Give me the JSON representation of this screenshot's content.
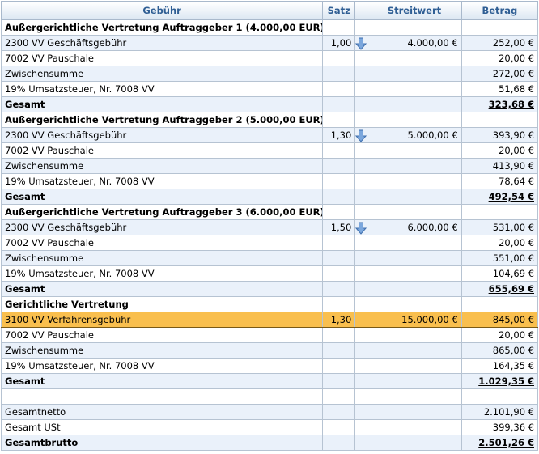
{
  "columns": {
    "fee": "Gebühr",
    "rate": "Satz",
    "value": "Streitwert",
    "amount": "Betrag"
  },
  "icons": {
    "rate_arrow": "arrow-down-icon"
  },
  "rows": [
    {
      "fee": "Außergerichtliche Vertretung Auftraggeber 1 (4.000,00 EUR)",
      "rate": "",
      "value": "",
      "amount": ""
    },
    {
      "fee": "2300 VV Geschäftsgebühr",
      "rate": "1,00",
      "value": "4.000,00 €",
      "amount": "252,00 €"
    },
    {
      "fee": "7002 VV Pauschale",
      "rate": "",
      "value": "",
      "amount": "20,00 €"
    },
    {
      "fee": "Zwischensumme",
      "rate": "",
      "value": "",
      "amount": "272,00 €"
    },
    {
      "fee": "19% Umsatzsteuer, Nr. 7008 VV",
      "rate": "",
      "value": "",
      "amount": "51,68 €"
    },
    {
      "fee": "Gesamt",
      "rate": "",
      "value": "",
      "amount": "323,68 €"
    },
    {
      "fee": "Außergerichtliche Vertretung Auftraggeber 2 (5.000,00 EUR)",
      "rate": "",
      "value": "",
      "amount": ""
    },
    {
      "fee": "2300 VV Geschäftsgebühr",
      "rate": "1,30",
      "value": "5.000,00 €",
      "amount": "393,90 €"
    },
    {
      "fee": "7002 VV Pauschale",
      "rate": "",
      "value": "",
      "amount": "20,00 €"
    },
    {
      "fee": "Zwischensumme",
      "rate": "",
      "value": "",
      "amount": "413,90 €"
    },
    {
      "fee": "19% Umsatzsteuer, Nr. 7008 VV",
      "rate": "",
      "value": "",
      "amount": "78,64 €"
    },
    {
      "fee": "Gesamt",
      "rate": "",
      "value": "",
      "amount": "492,54 €"
    },
    {
      "fee": "Außergerichtliche Vertretung Auftraggeber 3 (6.000,00 EUR)",
      "rate": "",
      "value": "",
      "amount": ""
    },
    {
      "fee": "2300 VV Geschäftsgebühr",
      "rate": "1,50",
      "value": "6.000,00 €",
      "amount": "531,00 €"
    },
    {
      "fee": "7002 VV Pauschale",
      "rate": "",
      "value": "",
      "amount": "20,00 €"
    },
    {
      "fee": "Zwischensumme",
      "rate": "",
      "value": "",
      "amount": "551,00 €"
    },
    {
      "fee": "19% Umsatzsteuer, Nr. 7008 VV",
      "rate": "",
      "value": "",
      "amount": "104,69 €"
    },
    {
      "fee": "Gesamt",
      "rate": "",
      "value": "",
      "amount": "655,69 €"
    },
    {
      "fee": "Gerichtliche Vertretung",
      "rate": "",
      "value": "",
      "amount": ""
    },
    {
      "fee": "3100 VV Verfahrensgebühr",
      "rate": "1,30",
      "value": "15.000,00 €",
      "amount": "845,00 €"
    },
    {
      "fee": "7002 VV Pauschale",
      "rate": "",
      "value": "",
      "amount": "20,00 €"
    },
    {
      "fee": "Zwischensumme",
      "rate": "",
      "value": "",
      "amount": "865,00 €"
    },
    {
      "fee": "19% Umsatzsteuer, Nr. 7008 VV",
      "rate": "",
      "value": "",
      "amount": "164,35 €"
    },
    {
      "fee": "Gesamt",
      "rate": "",
      "value": "",
      "amount": "1.029,35 €"
    },
    {
      "fee": "",
      "rate": "",
      "value": "",
      "amount": ""
    },
    {
      "fee": "Gesamtnetto",
      "rate": "",
      "value": "",
      "amount": "2.101,90 €"
    },
    {
      "fee": "Gesamt USt",
      "rate": "",
      "value": "",
      "amount": "399,36 €"
    },
    {
      "fee": "Gesamtbrutto",
      "rate": "",
      "value": "",
      "amount": "2.501,26 €"
    }
  ]
}
